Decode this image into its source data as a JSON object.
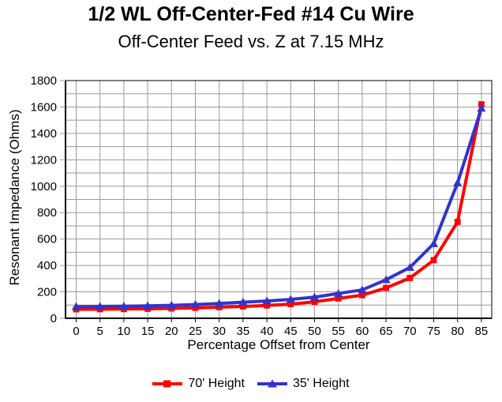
{
  "title": "1/2 WL Off-Center-Fed #14 Cu Wire",
  "subtitle": "Off-Center Feed vs. Z at 7.15 MHz",
  "colors": {
    "series_70ft": "#FF0000",
    "series_35ft": "#3333CC",
    "gridline": "#999999",
    "axis": "#000000",
    "background": "#FFFFFF",
    "text": "#000000"
  },
  "chart_data": {
    "type": "line",
    "title": "1/2 WL Off-Center-Fed #14 Cu Wire",
    "subtitle": "Off-Center Feed vs. Z at 7.15 MHz",
    "xlabel": "Percentage Offset from Center",
    "ylabel": "Resonant Impedance (Ohms)",
    "x": [
      0,
      5,
      10,
      15,
      20,
      25,
      30,
      35,
      40,
      45,
      50,
      55,
      60,
      65,
      70,
      75,
      80,
      85
    ],
    "ylim": [
      0,
      1800
    ],
    "ytick_step": 200,
    "ygrid_step": 100,
    "grid": true,
    "legend_position": "bottom",
    "series": [
      {
        "name": "70' Height",
        "color": "#FF0000",
        "marker": "square",
        "values": [
          68,
          69,
          70,
          72,
          75,
          79,
          84,
          90,
          97,
          107,
          125,
          150,
          175,
          230,
          305,
          440,
          730,
          1620
        ]
      },
      {
        "name": "35' Height",
        "color": "#3333CC",
        "marker": "triangle",
        "values": [
          88,
          89,
          91,
          94,
          98,
          104,
          112,
          122,
          131,
          143,
          160,
          188,
          215,
          292,
          385,
          565,
          1025,
          1590
        ]
      }
    ]
  }
}
